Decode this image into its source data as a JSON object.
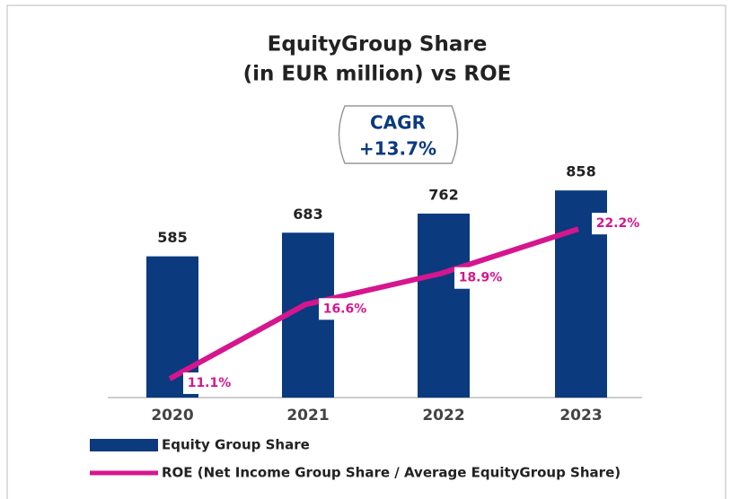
{
  "chart_data": {
    "type": "bar",
    "title": [
      "EquityGroup Share",
      "(in EUR million) vs ROE"
    ],
    "annotations": [
      "CAGR",
      "+13.7%"
    ],
    "categories": [
      "2020",
      "2021",
      "2022",
      "2023"
    ],
    "series": [
      {
        "name": "Equity Group Share",
        "type": "bar",
        "color": "#0b3a7e",
        "values": [
          585,
          683,
          762,
          858
        ]
      },
      {
        "name": "ROE (Net Income Group Share / Average EquityGroup Share)",
        "type": "line",
        "axis": "y2",
        "color": "#d5168e",
        "values": [
          11.1,
          16.6,
          18.9,
          22.2
        ],
        "value_labels": [
          "11.1%",
          "16.6%",
          "18.9%",
          "22.2%"
        ]
      }
    ],
    "ylim": [
      0,
      1000
    ],
    "y2lim": [
      9.7,
      27.6
    ]
  }
}
